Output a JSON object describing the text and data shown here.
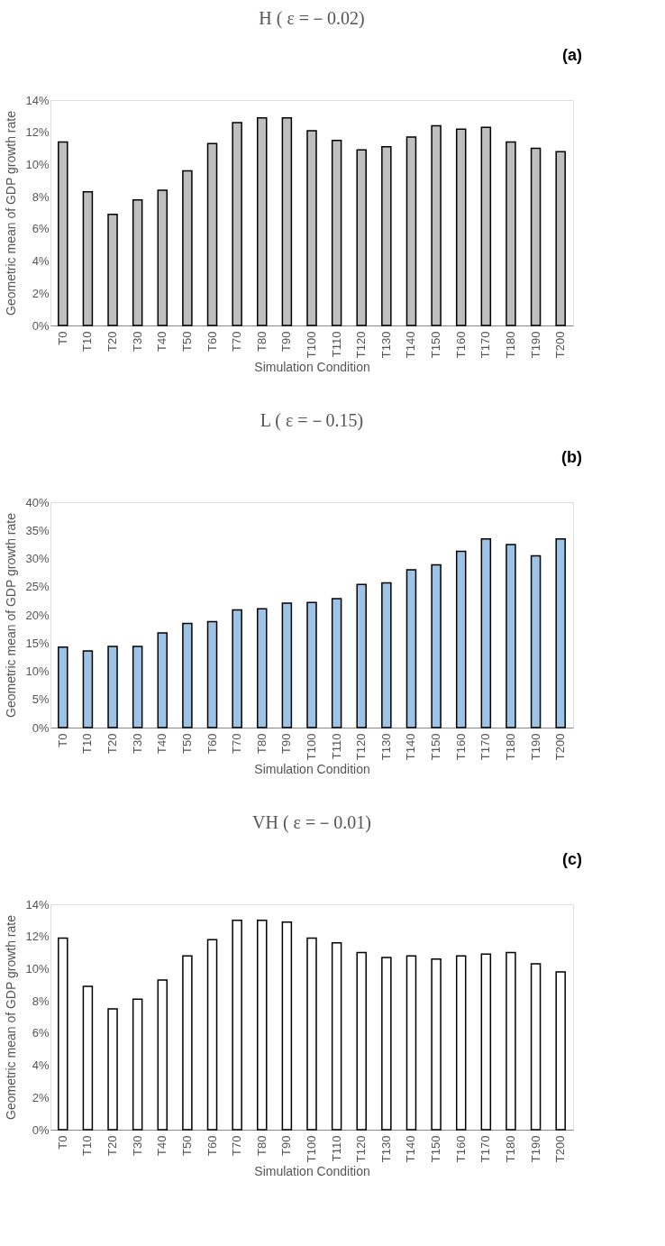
{
  "chart_data": [
    {
      "type": "bar",
      "title": "H ( ε =－0.02)",
      "annotations": [
        "(a)"
      ],
      "xlabel": "Simulation Condition",
      "ylabel": "Geometric mean of GDP growth rate",
      "color": "#bfbfbf",
      "categories": [
        "T0",
        "T10",
        "T20",
        "T30",
        "T40",
        "T50",
        "T60",
        "T70",
        "T80",
        "T90",
        "T100",
        "T110",
        "T120",
        "T130",
        "T140",
        "T150",
        "T160",
        "T170",
        "T180",
        "T190",
        "T200"
      ],
      "values": [
        11.4,
        8.3,
        6.9,
        7.8,
        8.4,
        9.6,
        11.3,
        12.6,
        12.9,
        12.9,
        12.1,
        11.5,
        10.9,
        11.1,
        11.7,
        12.4,
        12.2,
        12.3,
        11.4,
        11.0,
        10.8
      ],
      "ylim": [
        0,
        14
      ],
      "yticks": [
        {
          "value": 0,
          "label": "0%"
        },
        {
          "value": 2,
          "label": "2%"
        },
        {
          "value": 4,
          "label": "4%"
        },
        {
          "value": 6,
          "label": "6%"
        },
        {
          "value": 8,
          "label": "8%"
        },
        {
          "value": 10,
          "label": "10%"
        },
        {
          "value": 12,
          "label": "12%"
        },
        {
          "value": 14,
          "label": "14%"
        }
      ],
      "grid": false
    },
    {
      "type": "bar",
      "title": "L ( ε =－0.15)",
      "annotations": [
        "(b)"
      ],
      "xlabel": "Simulation Condition",
      "ylabel": "Geometric mean of GDP growth rate",
      "color": "#9dc3e6",
      "categories": [
        "T0",
        "T10",
        "T20",
        "T30",
        "T40",
        "T50",
        "T60",
        "T70",
        "T80",
        "T90",
        "T100",
        "T110",
        "T120",
        "T130",
        "T140",
        "T150",
        "T160",
        "T170",
        "T180",
        "T190",
        "T200"
      ],
      "values": [
        14.3,
        13.6,
        14.4,
        14.4,
        16.8,
        18.5,
        18.8,
        20.9,
        21.1,
        22.1,
        22.2,
        22.9,
        25.4,
        25.7,
        28.0,
        28.9,
        31.3,
        33.5,
        32.5,
        30.5,
        33.5
      ],
      "ylim": [
        0,
        40
      ],
      "yticks": [
        {
          "value": 0,
          "label": "0%"
        },
        {
          "value": 5,
          "label": "5%"
        },
        {
          "value": 10,
          "label": "10%"
        },
        {
          "value": 15,
          "label": "15%"
        },
        {
          "value": 20,
          "label": "20%"
        },
        {
          "value": 25,
          "label": "25%"
        },
        {
          "value": 30,
          "label": "30%"
        },
        {
          "value": 35,
          "label": "35%"
        },
        {
          "value": 40,
          "label": "40%"
        }
      ],
      "grid": false
    },
    {
      "type": "bar",
      "title": "VH ( ε =－0.01)",
      "annotations": [
        "(c)"
      ],
      "xlabel": "Simulation Condition",
      "ylabel": "Geometric mean of GDP growth rate",
      "color": "#ffffff",
      "categories": [
        "T0",
        "T10",
        "T20",
        "T30",
        "T40",
        "T50",
        "T60",
        "T70",
        "T80",
        "T90",
        "T100",
        "T110",
        "T120",
        "T130",
        "T140",
        "T150",
        "T160",
        "T170",
        "T180",
        "T190",
        "T200"
      ],
      "values": [
        11.9,
        8.9,
        7.5,
        8.1,
        9.3,
        10.8,
        11.8,
        13.0,
        13.0,
        12.9,
        11.9,
        11.6,
        11.0,
        10.7,
        10.8,
        10.6,
        10.8,
        10.9,
        11.0,
        10.3,
        9.8
      ],
      "ylim": [
        0,
        14
      ],
      "yticks": [
        {
          "value": 0,
          "label": "0%"
        },
        {
          "value": 2,
          "label": "2%"
        },
        {
          "value": 4,
          "label": "4%"
        },
        {
          "value": 6,
          "label": "6%"
        },
        {
          "value": 8,
          "label": "8%"
        },
        {
          "value": 10,
          "label": "10%"
        },
        {
          "value": 12,
          "label": "12%"
        },
        {
          "value": 14,
          "label": "14%"
        }
      ],
      "grid": false
    }
  ]
}
